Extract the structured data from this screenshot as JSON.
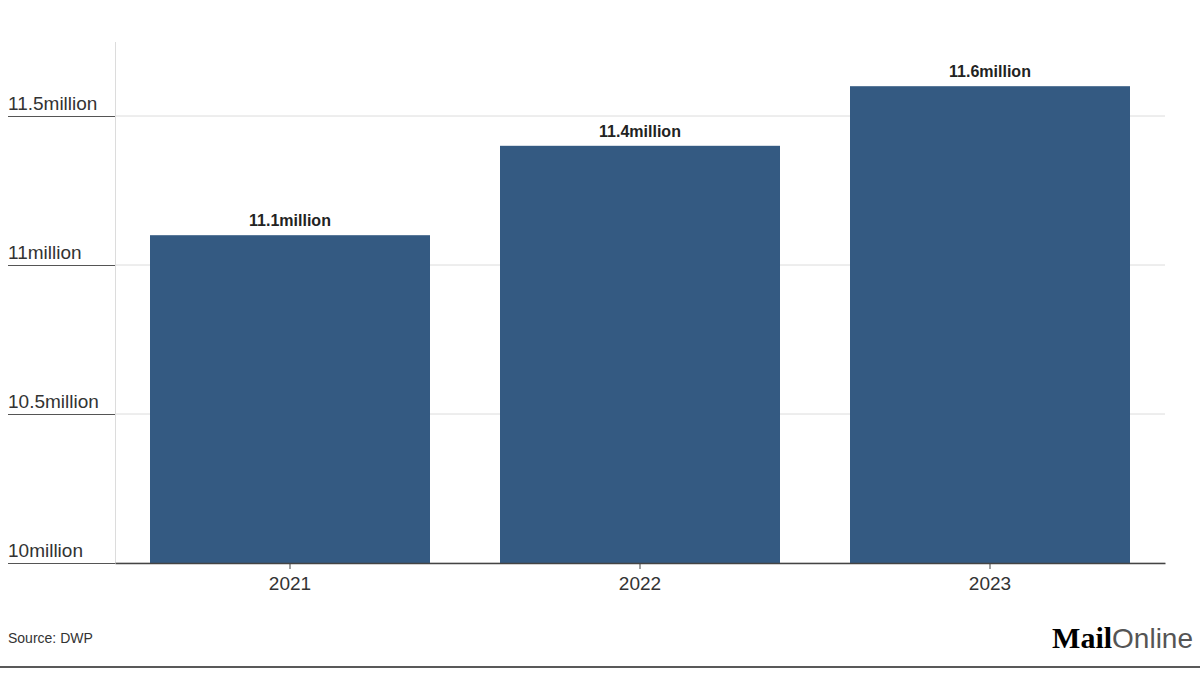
{
  "chart_data": {
    "type": "bar",
    "categories": [
      "2021",
      "2022",
      "2023"
    ],
    "values": [
      11.1,
      11.4,
      11.6
    ],
    "value_labels": [
      "11.1million",
      "11.4million",
      "11.6million"
    ],
    "data_labels": true,
    "color": "#345a82",
    "ylim": [
      10,
      11.75
    ],
    "yticks": [
      {
        "value": 10,
        "label": "10million"
      },
      {
        "value": 10.5,
        "label": "10.5million"
      },
      {
        "value": 11,
        "label": "11million"
      },
      {
        "value": 11.5,
        "label": "11.5million"
      }
    ],
    "grid": true,
    "source": "Source: DWP",
    "credit": [
      "Mail",
      "Online"
    ]
  }
}
